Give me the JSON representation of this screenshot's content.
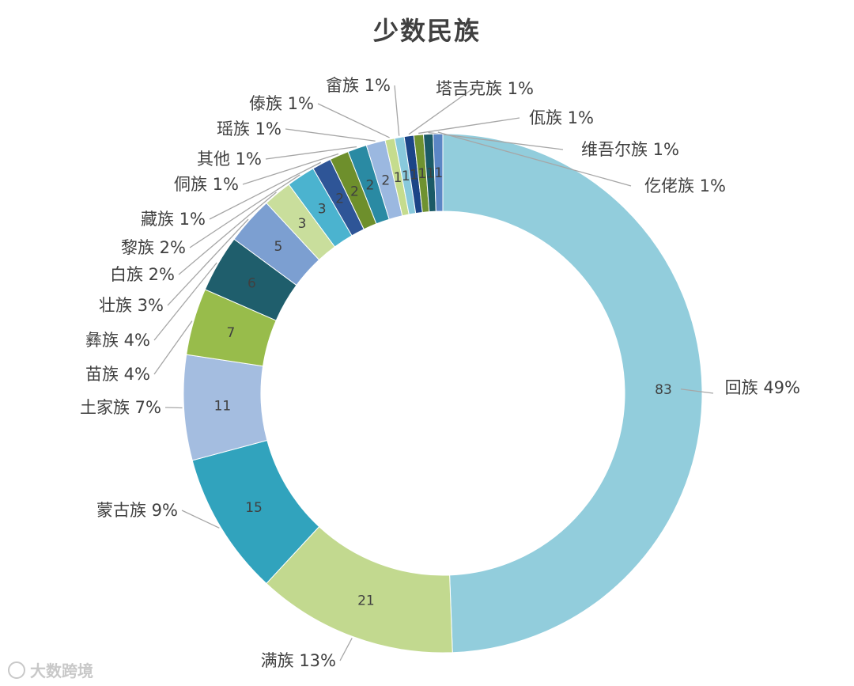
{
  "watermark": {
    "text": "大数跨境"
  },
  "chart_data": {
    "type": "donut",
    "title": "少数民族",
    "legend": "none",
    "slices": [
      {
        "name": "回族",
        "value": 83,
        "percent_label": "49%",
        "color": "#92cddc"
      },
      {
        "name": "满族",
        "value": 21,
        "percent_label": "13%",
        "color": "#c2d98f"
      },
      {
        "name": "蒙古族",
        "value": 15,
        "percent_label": "9%",
        "color": "#31a3bd"
      },
      {
        "name": "土家族",
        "value": 11,
        "percent_label": "7%",
        "color": "#a4bde0"
      },
      {
        "name": "苗族",
        "value": 7,
        "percent_label": "4%",
        "color": "#98bc4b"
      },
      {
        "name": "彝族",
        "value": 6,
        "percent_label": "4%",
        "color": "#1f5e6c"
      },
      {
        "name": "壮族",
        "value": 5,
        "percent_label": "3%",
        "color": "#7c9fd1"
      },
      {
        "name": "白族",
        "value": 3,
        "percent_label": "2%",
        "color": "#c9de9c"
      },
      {
        "name": "黎族",
        "value": 3,
        "percent_label": "2%",
        "color": "#4bb3cf"
      },
      {
        "name": "藏族",
        "value": 2,
        "percent_label": "1%",
        "color": "#2e5597"
      },
      {
        "name": "侗族",
        "value": 2,
        "percent_label": "1%",
        "color": "#6e8f2c"
      },
      {
        "name": "其他",
        "value": 2,
        "percent_label": "1%",
        "color": "#2a8aa3"
      },
      {
        "name": "瑶族",
        "value": 2,
        "percent_label": "1%",
        "color": "#9bb8e0"
      },
      {
        "name": "傣族",
        "value": 1,
        "percent_label": "1%",
        "color": "#c5dc8e"
      },
      {
        "name": "畲族",
        "value": 1,
        "percent_label": "1%",
        "color": "#88c9dc"
      },
      {
        "name": "塔吉克族",
        "value": 1,
        "percent_label": "1%",
        "color": "#1c4587"
      },
      {
        "name": "佤族",
        "value": 1,
        "percent_label": "1%",
        "color": "#6f9230"
      },
      {
        "name": "维吾尔族",
        "value": 1,
        "percent_label": "1%",
        "color": "#1b5a66"
      },
      {
        "name": "仡佬族",
        "value": 1,
        "percent_label": "1%",
        "color": "#5b86c5"
      }
    ]
  }
}
